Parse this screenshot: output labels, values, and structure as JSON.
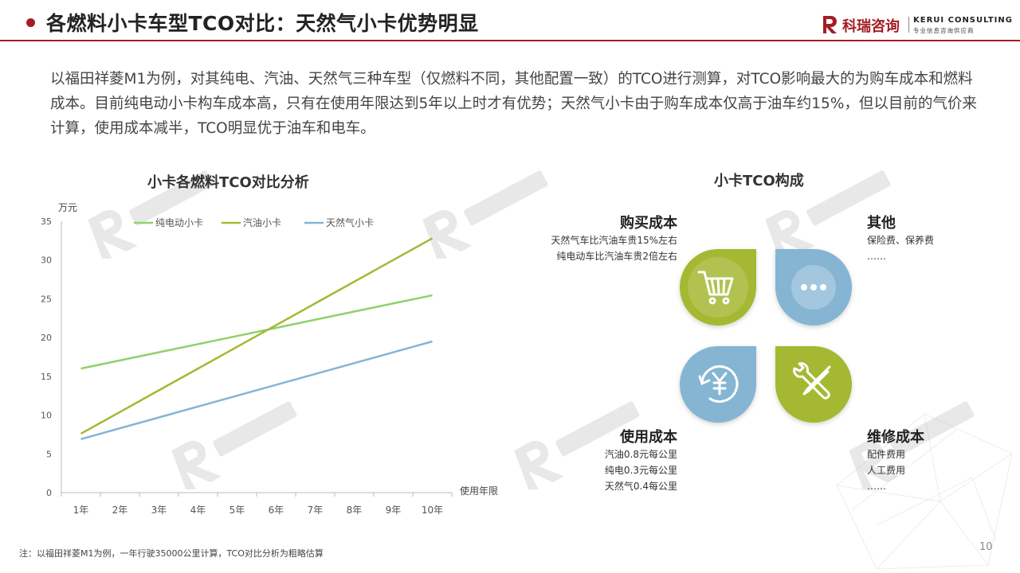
{
  "header": {
    "title": "各燃料小卡车型TCO对比：天然气小卡优势明显",
    "logo_cn": "科瑞咨询",
    "logo_en": "KERUI CONSULTING",
    "logo_en_sub": "专业信息咨询供应商",
    "accent_color": "#a31f24"
  },
  "intro": "以福田祥菱M1为例，对其纯电、汽油、天然气三种车型（仅燃料不同，其他配置一致）的TCO进行测算，对TCO影响最大的为购车成本和燃料成本。目前纯电动小卡构车成本高，只有在使用年限达到5年以上时才有优势；天然气小卡由于购车成本仅高于油车约15%，但以目前的气价来计算，使用成本减半，TCO明显优于油车和电车。",
  "chart_data": {
    "type": "line",
    "title": "小卡各燃料TCO对比分析",
    "ylabel": "万元",
    "xlabel": "使用年限",
    "categories": [
      "1年",
      "2年",
      "3年",
      "4年",
      "5年",
      "6年",
      "7年",
      "8年",
      "9年",
      "10年"
    ],
    "ylim": [
      0,
      35
    ],
    "yticks": [
      0,
      5,
      10,
      15,
      20,
      25,
      30,
      35
    ],
    "legend_position": "top-left",
    "grid": false,
    "series": [
      {
        "name": "纯电动小卡",
        "color": "#8fd16a",
        "values": [
          16.0,
          17.05,
          18.1,
          19.15,
          20.2,
          21.25,
          22.3,
          23.35,
          24.4,
          25.45
        ]
      },
      {
        "name": "汽油小卡",
        "color": "#a5b832",
        "values": [
          7.6,
          10.4,
          13.2,
          16.0,
          18.8,
          21.6,
          24.4,
          27.2,
          30.0,
          32.8
        ]
      },
      {
        "name": "天然气小卡",
        "color": "#85b5d3",
        "values": [
          6.9,
          8.3,
          9.7,
          11.1,
          12.5,
          13.9,
          15.3,
          16.7,
          18.1,
          19.5
        ]
      }
    ]
  },
  "tco": {
    "title": "小卡TCO构成",
    "purchase": {
      "head": "购买成本",
      "lines": [
        "天然气车比汽油车贵15%左右",
        "纯电动车比汽油车贵2倍左右"
      ],
      "icon": "shopping-cart-icon",
      "color": "#a5b832"
    },
    "other": {
      "head": "其他",
      "lines": [
        "保险费、保养费",
        "……"
      ],
      "icon": "more-dots-icon",
      "color": "#85b5d3"
    },
    "usage": {
      "head": "使用成本",
      "lines": [
        "汽油0.8元每公里",
        "纯电0.3元每公里",
        "天然气0.4每公里"
      ],
      "icon": "yen-cycle-icon",
      "color": "#85b5d3"
    },
    "maintenance": {
      "head": "维修成本",
      "lines": [
        "配件费用",
        "人工费用",
        "……"
      ],
      "icon": "wrench-screwdriver-icon",
      "color": "#a5b832"
    }
  },
  "footnote": "注：以福田祥菱M1为例，一年行驶35000公里计算，TCO对比分析为粗略估算",
  "page_number": "10"
}
